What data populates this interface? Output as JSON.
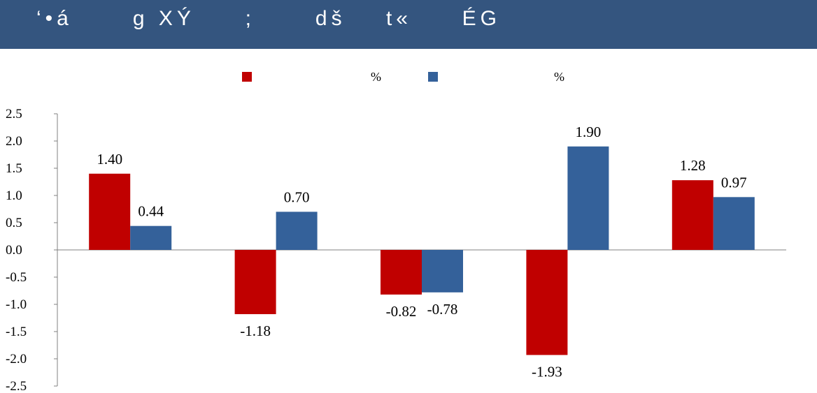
{
  "header": {
    "title": "‘•á      g XÝ     ;      dš    t«     ÉG"
  },
  "legend": [
    {
      "label": "%",
      "color": "#c00000"
    },
    {
      "label": "%",
      "color": "#34619a"
    }
  ],
  "chart_data": {
    "type": "bar",
    "categories": [
      "",
      "",
      "",
      "",
      ""
    ],
    "series": [
      {
        "color": "#c00000",
        "values": [
          1.4,
          -1.18,
          -0.82,
          -1.93,
          1.28
        ],
        "labels": [
          "1.40",
          "-1.18",
          "-0.82",
          "-1.93",
          "1.28"
        ]
      },
      {
        "color": "#34619a",
        "values": [
          0.44,
          0.7,
          -0.78,
          1.9,
          0.97
        ],
        "labels": [
          "0.44",
          "0.70",
          "-0.78",
          "1.90",
          "0.97"
        ]
      }
    ],
    "ylim": [
      -2.5,
      2.5
    ],
    "yticks": [
      "2.5",
      "2.0",
      "1.5",
      "1.0",
      "0.5",
      "0.0",
      "-0.5",
      "-1.0",
      "-1.5",
      "-2.0",
      "-2.5"
    ],
    "grid": false
  }
}
